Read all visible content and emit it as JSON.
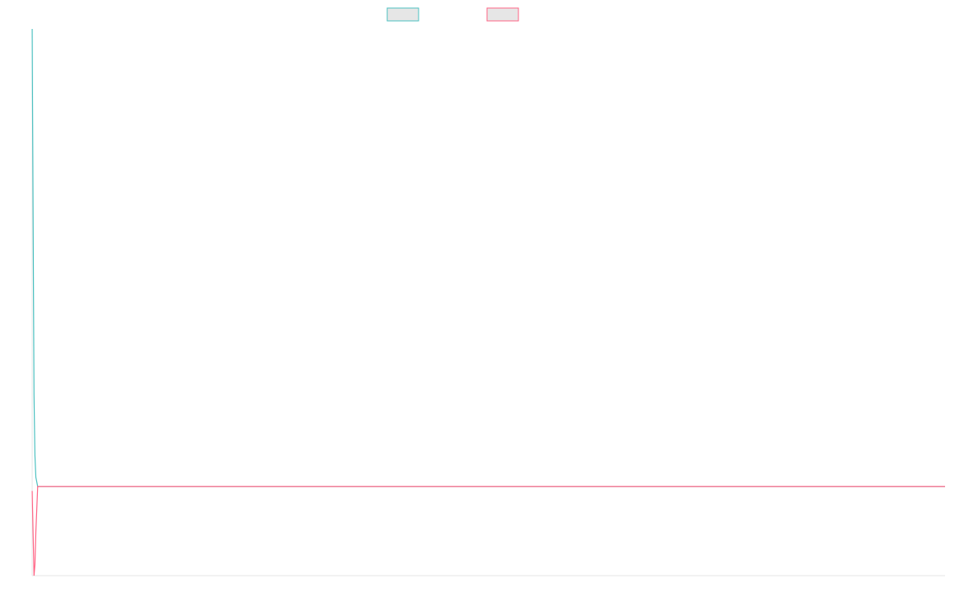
{
  "chart_data": {
    "type": "line",
    "title": "",
    "xlabel": "",
    "ylabel": "",
    "grid": false,
    "legend_placement": "top-center",
    "xlim": [
      0,
      1000
    ],
    "ylim": [
      0,
      100
    ],
    "x": [
      0,
      2,
      3,
      4,
      6,
      1000
    ],
    "series": [
      {
        "name": "",
        "color": "#4bc0c0",
        "fill": "#e6e6e6",
        "values": [
          100,
          33,
          22,
          18,
          16.3,
          16.3
        ]
      },
      {
        "name": "",
        "color": "#ff6384",
        "fill": "#e6e6e6",
        "values": [
          15.5,
          0,
          2,
          8,
          16.3,
          16.3
        ]
      }
    ],
    "axis_color": "#e5e5e5"
  }
}
